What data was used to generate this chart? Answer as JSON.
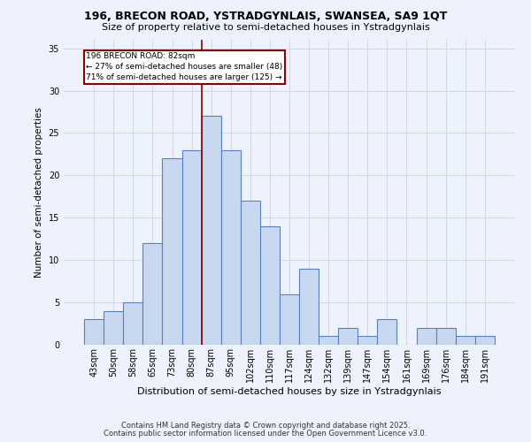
{
  "title1": "196, BRECON ROAD, YSTRADGYNLAIS, SWANSEA, SA9 1QT",
  "title2": "Size of property relative to semi-detached houses in Ystradgynlais",
  "xlabel": "Distribution of semi-detached houses by size in Ystradgynlais",
  "ylabel": "Number of semi-detached properties",
  "categories": [
    "43sqm",
    "50sqm",
    "58sqm",
    "65sqm",
    "73sqm",
    "80sqm",
    "87sqm",
    "95sqm",
    "102sqm",
    "110sqm",
    "117sqm",
    "124sqm",
    "132sqm",
    "139sqm",
    "147sqm",
    "154sqm",
    "161sqm",
    "169sqm",
    "176sqm",
    "184sqm",
    "191sqm"
  ],
  "values": [
    3,
    4,
    5,
    12,
    22,
    23,
    27,
    23,
    17,
    14,
    6,
    9,
    1,
    2,
    1,
    3,
    0,
    2,
    2,
    1,
    1
  ],
  "bar_color": "#c8d8f0",
  "bar_edge_color": "#5a7fbf",
  "reference_line_x": 5.5,
  "reference_label": "196 BRECON ROAD: 82sqm",
  "annotation_line1": "← 27% of semi-detached houses are smaller (48)",
  "annotation_line2": "71% of semi-detached houses are larger (125) →",
  "footer1": "Contains HM Land Registry data © Crown copyright and database right 2025.",
  "footer2": "Contains public sector information licensed under the Open Government Licence v3.0.",
  "bg_color": "#eef2fc",
  "grid_color": "#d0d8ee",
  "yticks": [
    0,
    5,
    10,
    15,
    20,
    25,
    30,
    35
  ],
  "ylim": [
    0,
    36
  ]
}
